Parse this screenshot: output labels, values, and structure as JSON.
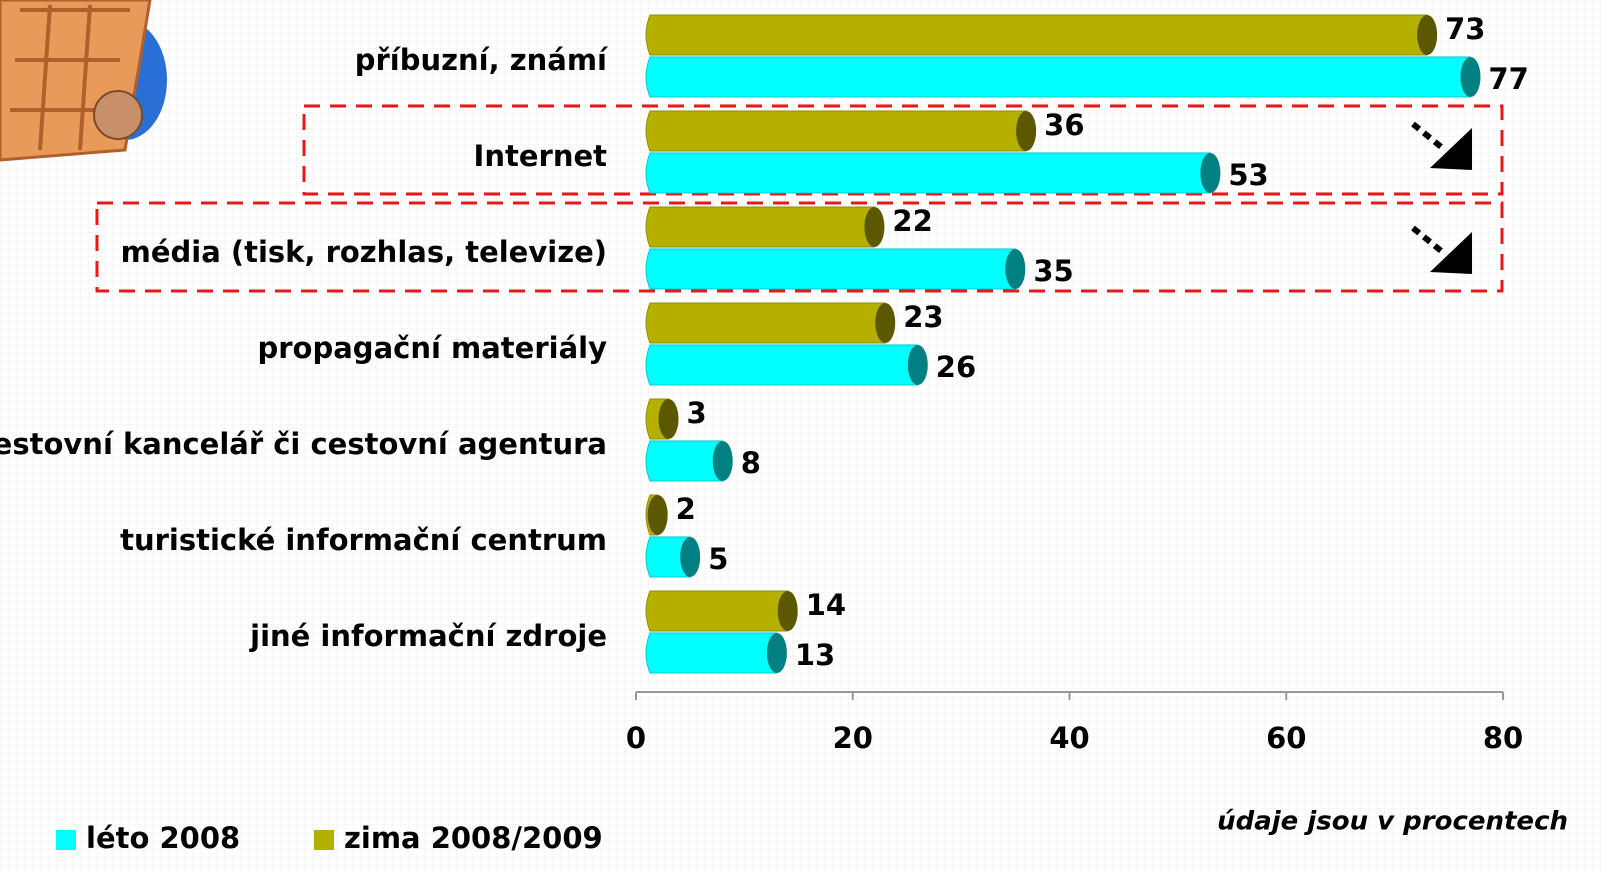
{
  "chart_data": {
    "type": "bar",
    "orientation": "horizontal",
    "categories": [
      "příbuzní, známí",
      "Internet",
      "média (tisk, rozhlas, televize)",
      "propagační materiály",
      "cestovní kancelář či cestovní agentura",
      "turistické informační centrum",
      "jiné informační zdroje"
    ],
    "series": [
      {
        "name": "zima 2008/2009",
        "color": "#b5b000",
        "values": [
          73,
          36,
          22,
          23,
          3,
          2,
          14
        ]
      },
      {
        "name": "léto 2008",
        "color": "#00ffff",
        "values": [
          77,
          53,
          35,
          26,
          8,
          5,
          13
        ]
      }
    ],
    "legend_order": [
      1,
      0
    ],
    "xlim": [
      0,
      80
    ],
    "xticks": [
      0,
      20,
      40,
      60,
      80
    ],
    "note": "údaje jsou v procentech"
  }
}
